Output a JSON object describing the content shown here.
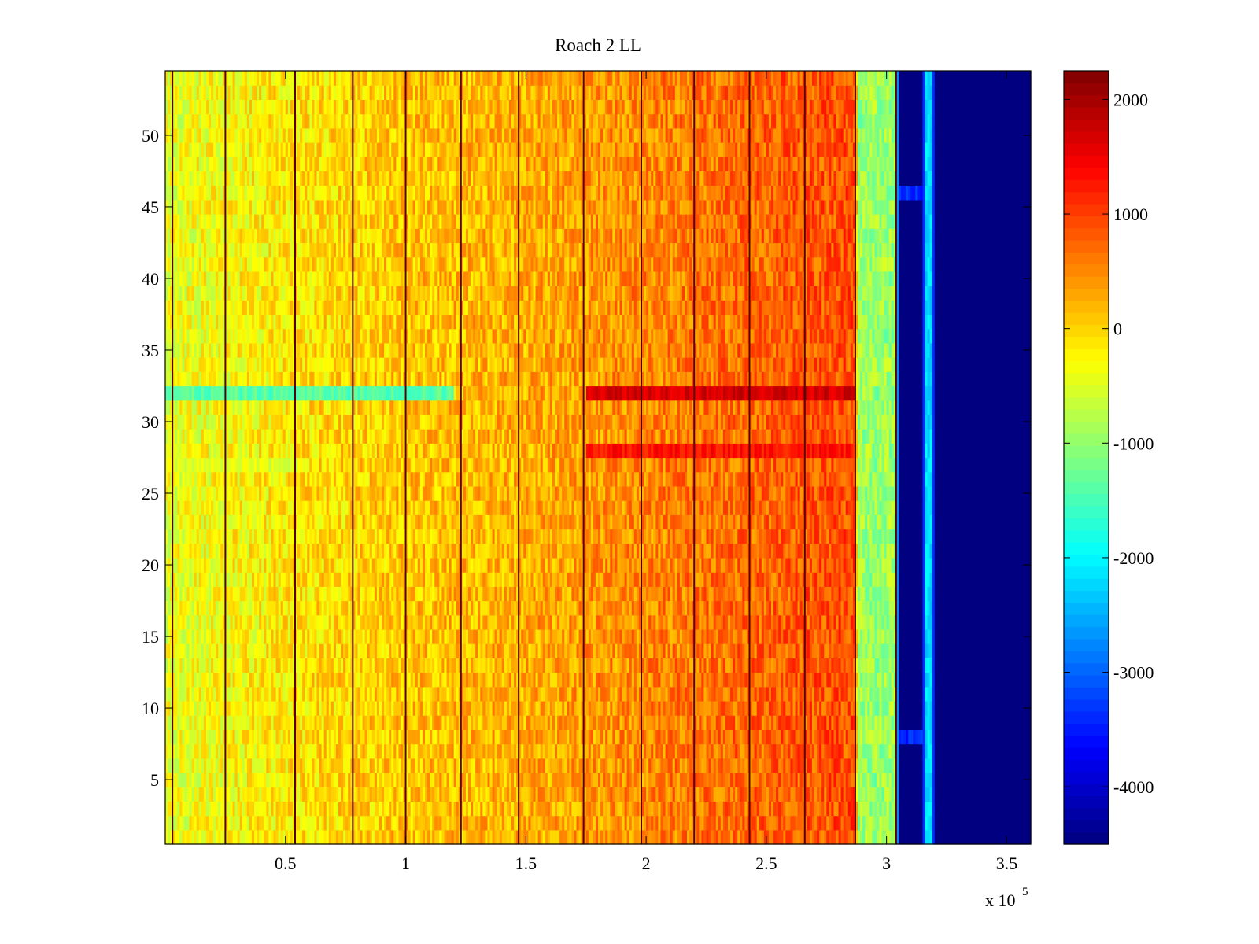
{
  "chart_data": {
    "type": "heatmap",
    "title": "Roach 2 LL",
    "xlabel": "",
    "ylabel": "",
    "x_multiplier_label": "x 10",
    "x_multiplier_exponent": "5",
    "xlim": [
      0,
      3.6
    ],
    "ylim": [
      0.5,
      54.5
    ],
    "x_ticks": [
      0.5,
      1,
      1.5,
      2,
      2.5,
      3,
      3.5
    ],
    "x_tick_labels": [
      "0.5",
      "1",
      "1.5",
      "2",
      "2.5",
      "3",
      "3.5"
    ],
    "y_ticks": [
      5,
      10,
      15,
      20,
      25,
      30,
      35,
      40,
      45,
      50
    ],
    "y_tick_labels": [
      "5",
      "10",
      "15",
      "20",
      "25",
      "30",
      "35",
      "40",
      "45",
      "50"
    ],
    "rows": 54,
    "colorbar": {
      "colormap": "jet",
      "range": [
        -4500,
        2250
      ],
      "ticks": [
        -4000,
        -3000,
        -2000,
        -1000,
        0,
        1000,
        2000
      ],
      "tick_labels": [
        "-4000",
        "-3000",
        "-2000",
        "-1000",
        "0",
        "1000",
        "2000"
      ]
    },
    "column_profile": [
      {
        "x": 0.0,
        "value": -450
      },
      {
        "x": 0.5,
        "value": -150
      },
      {
        "x": 1.0,
        "value": 100
      },
      {
        "x": 1.5,
        "value": 250
      },
      {
        "x": 2.0,
        "value": 500
      },
      {
        "x": 2.5,
        "value": 750
      },
      {
        "x": 2.87,
        "value": 900
      },
      {
        "x": 2.88,
        "value": -950
      },
      {
        "x": 3.04,
        "value": -950
      },
      {
        "x": 3.05,
        "value": -4500
      },
      {
        "x": 3.15,
        "value": -4500
      },
      {
        "x": 3.16,
        "value": -2200
      },
      {
        "x": 3.19,
        "value": -2200
      },
      {
        "x": 3.2,
        "value": -4500
      },
      {
        "x": 3.6,
        "value": -4500
      }
    ],
    "dark_vertical_lines_x": [
      0.03,
      0.25,
      0.54,
      0.78,
      1.0,
      1.23,
      1.47,
      1.74,
      1.98,
      2.2,
      2.43,
      2.66,
      2.87,
      3.04
    ],
    "row_features": [
      {
        "row": 32,
        "x_range": [
          0.0,
          1.2
        ],
        "value": -1400
      },
      {
        "row": 32,
        "x_range": [
          1.75,
          2.87
        ],
        "value": 1700
      },
      {
        "row": 28,
        "x_range": [
          1.75,
          2.87
        ],
        "value": 1300
      },
      {
        "row": 27,
        "x_range": [
          0.0,
          0.6
        ],
        "value": -500
      },
      {
        "row": 46,
        "x_range": [
          3.05,
          3.15
        ],
        "value": -3400
      },
      {
        "row": 8,
        "x_range": [
          3.05,
          3.15
        ],
        "value": -3400
      }
    ],
    "colors": {
      "frame": "#000000",
      "dark_line": "#5a0000",
      "background": "#ffffff"
    }
  }
}
